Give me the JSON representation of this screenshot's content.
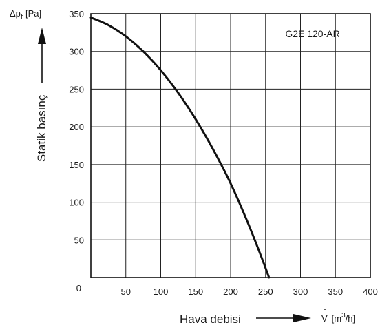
{
  "chart_data": {
    "type": "line",
    "title": "",
    "model_label": "G2E 120-AR",
    "ylabel": "Statik basınç",
    "ylabel_symbol": "Δp",
    "ylabel_subscript": "f",
    "ylabel_unit": "[Pa]",
    "xlabel": "Hava debisi",
    "xlabel_symbol": "V",
    "xlabel_unit_prefix": "[m",
    "xlabel_unit_sup": "3",
    "xlabel_unit_suffix": "/h]",
    "xlim": [
      0,
      400
    ],
    "ylim": [
      0,
      350
    ],
    "xticks": [
      0,
      50,
      100,
      150,
      200,
      250,
      300,
      350,
      400
    ],
    "yticks": [
      0,
      50,
      100,
      150,
      200,
      250,
      300,
      350
    ],
    "grid": true,
    "series": [
      {
        "x": [
          0,
          25,
          50,
          75,
          100,
          125,
          150,
          175,
          200,
          225,
          245,
          255
        ],
        "y": [
          345,
          335,
          320,
          300,
          275,
          245,
          210,
          170,
          125,
          72,
          25,
          0
        ]
      }
    ]
  }
}
